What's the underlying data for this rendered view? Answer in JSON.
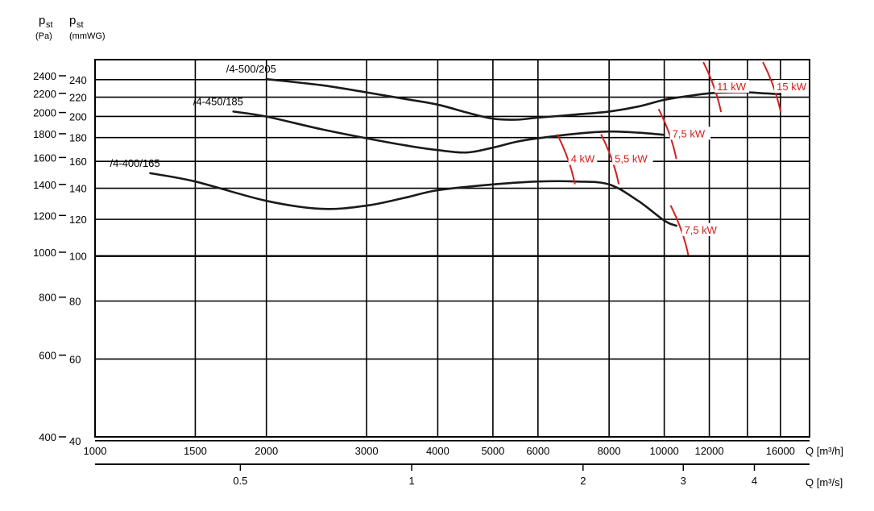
{
  "colors": {
    "grid": "#000000",
    "curve": "#1a1a1a",
    "power": "#d22020",
    "background": "#ffffff"
  },
  "chart_data": {
    "type": "line",
    "title": "",
    "x_scale": "log",
    "y_scale": "log",
    "xlabel": "Q [m³/h]",
    "x2label": "Q [m³/s]",
    "y_pa_label": {
      "main": "p",
      "sub": "st",
      "unit": "(Pa)"
    },
    "y_mmwg_label": {
      "main": "p",
      "sub": "st",
      "unit": "(mmWG)"
    },
    "xlim": [
      1000,
      18000
    ],
    "ylim_pa": [
      400,
      2600
    ],
    "x_ticks": [
      "1000",
      "1500",
      "2000",
      "3000",
      "4000",
      "5000",
      "6000",
      "8000",
      "10000",
      "12000",
      "16000"
    ],
    "x_tick_values": [
      1000,
      1500,
      2000,
      3000,
      4000,
      5000,
      6000,
      8000,
      10000,
      12000,
      16000
    ],
    "x_extra_grid": [
      14000
    ],
    "x2_ticks": [
      "0.5",
      "1",
      "2",
      "3",
      "4"
    ],
    "x2_tick_values": [
      0.5,
      1,
      2,
      3,
      4
    ],
    "y_pa_ticks": [
      "400",
      "600",
      "800",
      "1000",
      "1200",
      "1400",
      "1600",
      "1800",
      "2000",
      "2200",
      "2400"
    ],
    "y_pa_tick_values": [
      400,
      600,
      800,
      1000,
      1200,
      1400,
      1600,
      1800,
      2000,
      2200,
      2400
    ],
    "y_mmwg_ticks": [
      "40",
      "60",
      "80",
      "100",
      "120",
      "140",
      "160",
      "180",
      "200",
      "220",
      "240"
    ],
    "y_mmwg_tick_values": [
      40,
      60,
      80,
      100,
      120,
      140,
      160,
      180,
      200,
      220,
      240
    ],
    "series": [
      {
        "name": "/4-500/205",
        "x": [
          2000,
          2500,
          3000,
          3500,
          4000,
          4500,
          5000,
          5500,
          6000,
          7000,
          8000,
          9000,
          10000,
          11000,
          12000,
          13000,
          14000,
          15000,
          16000
        ],
        "y": [
          2360,
          2290,
          2210,
          2140,
          2080,
          2000,
          1940,
          1930,
          1950,
          1980,
          2010,
          2060,
          2130,
          2170,
          2200,
          2210,
          2210,
          2200,
          2190
        ]
      },
      {
        "name": "/4-450/185",
        "x": [
          1750,
          2000,
          2500,
          3000,
          3500,
          4000,
          4500,
          5000,
          5500,
          6000,
          7000,
          8000,
          9000,
          10000
        ],
        "y": [
          2010,
          1960,
          1840,
          1760,
          1700,
          1660,
          1640,
          1680,
          1730,
          1760,
          1800,
          1820,
          1810,
          1790
        ]
      },
      {
        "name": "/4-400/165",
        "x": [
          1250,
          1500,
          2000,
          2500,
          3000,
          3500,
          4000,
          5000,
          6000,
          7000,
          8000,
          9000,
          10000,
          10500
        ],
        "y": [
          1480,
          1420,
          1290,
          1240,
          1260,
          1310,
          1360,
          1400,
          1420,
          1420,
          1400,
          1290,
          1170,
          1140
        ]
      }
    ],
    "power_marks": [
      {
        "label": "4 kW",
        "x": 6700,
        "y": 1580
      },
      {
        "label": "5,5 kW",
        "x": 8000,
        "y": 1580
      },
      {
        "label": "7,5 kW",
        "x": 10100,
        "y": 1790
      },
      {
        "label": "7,5 kW",
        "x": 10600,
        "y": 1110
      },
      {
        "label": "11 kW",
        "x": 12100,
        "y": 2260
      },
      {
        "label": "15 kW",
        "x": 15400,
        "y": 2260
      }
    ]
  }
}
